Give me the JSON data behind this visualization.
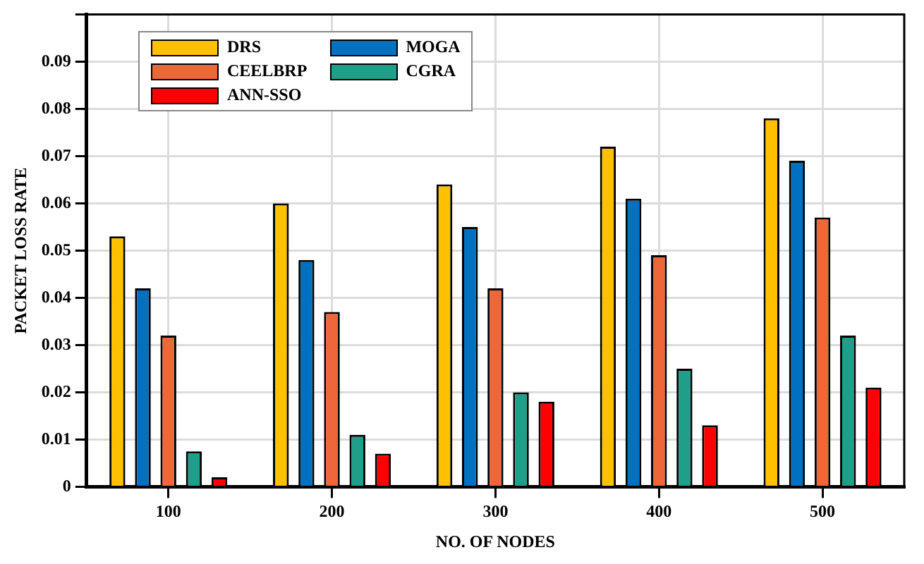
{
  "chart_data": {
    "type": "bar",
    "xlabel": "NO. OF NODES",
    "ylabel": "PACKET LOSS RATE",
    "categories": [
      "100",
      "200",
      "300",
      "400",
      "500"
    ],
    "series": [
      {
        "name": "DRS",
        "color": "#ffc000",
        "values": [
          0.053,
          0.06,
          0.064,
          0.072,
          0.078
        ]
      },
      {
        "name": "MOGA",
        "color": "#0070c0",
        "values": [
          0.042,
          0.048,
          0.055,
          0.061,
          0.069
        ]
      },
      {
        "name": "CEELBRP",
        "color": "#ed673a",
        "values": [
          0.032,
          0.037,
          0.042,
          0.049,
          0.057
        ]
      },
      {
        "name": "CGRA",
        "color": "#1f9e89",
        "values": [
          0.0075,
          0.011,
          0.02,
          0.025,
          0.032
        ]
      },
      {
        "name": "ANN-SSO",
        "color": "#ff0000",
        "values": [
          0.002,
          0.007,
          0.018,
          0.013,
          0.021
        ]
      }
    ],
    "ylim": [
      0,
      0.1
    ],
    "yticks": [
      0,
      0.01,
      0.02,
      0.03,
      0.04,
      0.05,
      0.06,
      0.07,
      0.08,
      0.09,
      {
        "value": 0.1,
        "label": null
      }
    ],
    "grid": true,
    "legend": "top left"
  }
}
